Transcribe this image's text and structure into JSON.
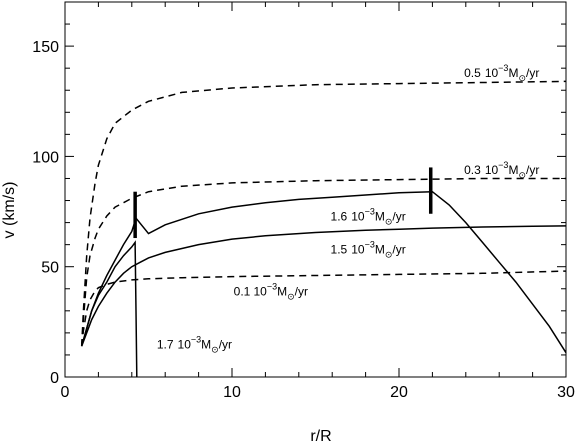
{
  "chart_data": {
    "type": "line",
    "xlabel": "r/R",
    "ylabel": "v (km/s)",
    "xlim": [
      0,
      30
    ],
    "ylim": [
      0,
      170
    ],
    "x_ticks": [
      0,
      10,
      20,
      30
    ],
    "y_ticks": [
      0,
      50,
      100,
      150
    ],
    "grid": false,
    "series": [
      {
        "id": "dash-05",
        "style": "dashed",
        "label": {
          "coef": "0.5",
          "exp": "−3",
          "unit": "/yr",
          "at": [
            23.9,
            136
          ]
        },
        "x": [
          1.0,
          1.1,
          1.3,
          1.5,
          1.8,
          2.0,
          2.5,
          3.0,
          4.0,
          5.0,
          7.0,
          10.0,
          15.0,
          20.0,
          25.0,
          30.0
        ],
        "y": [
          14,
          30,
          55,
          72,
          88,
          96,
          108,
          115,
          121,
          125,
          129,
          131,
          132.5,
          133,
          133.5,
          134
        ]
      },
      {
        "id": "dash-03",
        "style": "dashed",
        "label": {
          "coef": "0.3",
          "exp": "−3",
          "unit": "/yr",
          "at": [
            23.9,
            92
          ]
        },
        "x": [
          1.0,
          1.1,
          1.3,
          1.5,
          1.8,
          2.0,
          2.5,
          3.0,
          4.0,
          5.0,
          7.0,
          10.0,
          15.0,
          20.0,
          25.0,
          30.0
        ],
        "y": [
          14,
          26,
          45,
          55,
          63,
          67,
          73,
          77,
          81,
          84,
          86.5,
          88,
          89,
          89.5,
          90,
          90
        ]
      },
      {
        "id": "dash-01",
        "style": "dashed",
        "label": {
          "coef": "0.1",
          "exp": "−3",
          "unit": "/yr",
          "at": [
            10.1,
            37
          ]
        },
        "x": [
          1.0,
          1.1,
          1.3,
          1.5,
          1.8,
          2.0,
          2.5,
          3.0,
          4.0,
          5.0,
          7.0,
          10.0,
          15.0,
          20.0,
          25.0,
          30.0
        ],
        "y": [
          14,
          21,
          30,
          35,
          39,
          40.5,
          42,
          43,
          44,
          44.5,
          45,
          45.5,
          46,
          46.5,
          47,
          48
        ]
      },
      {
        "id": "solid-16",
        "style": "solid",
        "label": {
          "coef": "1.6",
          "exp": "−3",
          "unit": "/yr",
          "at": [
            15.9,
            71
          ]
        },
        "x": [
          1.0,
          1.3,
          1.6,
          2.0,
          2.5,
          3.0,
          3.5,
          4.0,
          4.25,
          5.0,
          6.0,
          8.0,
          10.0,
          12.0,
          14.0,
          16.0,
          18.0,
          20.0,
          22.0,
          23.0,
          24.0,
          25.0,
          26.0,
          27.0,
          28.0,
          29.0,
          30.0
        ],
        "y": [
          14,
          22,
          30,
          38,
          46,
          53,
          60,
          66,
          72,
          65,
          69,
          74,
          77,
          79,
          80.5,
          81.5,
          82.5,
          83.5,
          84,
          78,
          70,
          61,
          52,
          43,
          33,
          23,
          11
        ]
      },
      {
        "id": "solid-15",
        "style": "solid",
        "label": {
          "coef": "1.5",
          "exp": "−3",
          "unit": "/yr",
          "at": [
            15.9,
            56
          ]
        },
        "x": [
          1.0,
          1.3,
          1.6,
          2.0,
          2.5,
          3.0,
          3.5,
          4.0,
          4.5,
          5.0,
          6.0,
          8.0,
          10.0,
          12.0,
          15.0,
          18.0,
          20.0,
          22.0,
          25.0,
          28.0,
          30.0
        ],
        "y": [
          14,
          20,
          26,
          32,
          38,
          43,
          47,
          50,
          52,
          54,
          56.5,
          60,
          62.5,
          64,
          65.5,
          66.5,
          67,
          67.5,
          68,
          68.3,
          68.5
        ]
      },
      {
        "id": "solid-17",
        "style": "solid",
        "label": {
          "coef": "1.7",
          "exp": "−3",
          "unit": "/yr",
          "at": [
            5.5,
            13
          ]
        },
        "x": [
          1.0,
          1.3,
          1.6,
          2.0,
          2.5,
          3.0,
          3.5,
          4.0,
          4.2,
          4.25,
          4.3
        ],
        "y": [
          14,
          22,
          30,
          37,
          43,
          50,
          55,
          59,
          61,
          30,
          0
        ]
      }
    ],
    "markers": [
      {
        "x": 4.2,
        "y_from": 63,
        "y_to": 84
      },
      {
        "x": 21.9,
        "y_from": 74,
        "y_to": 95
      }
    ]
  }
}
